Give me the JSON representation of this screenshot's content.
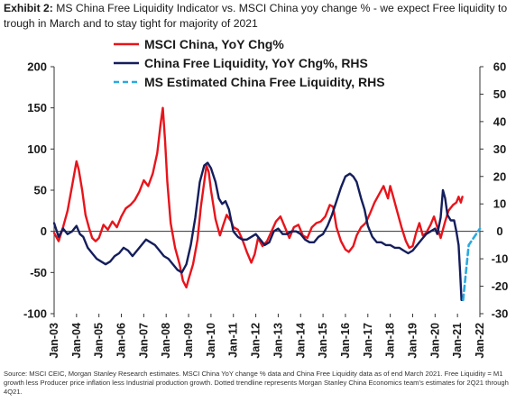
{
  "header": {
    "exhibit": "Exhibit 2:",
    "title": "MS China Free Liquidity Indicator vs. MSCI China yoy change % - we expect Free liquidity to trough in March and to stay tight for majority of 2021"
  },
  "footer": {
    "source": "Source: MSCI CEIC, Morgan Stanley Research estimates. MSCI China YoY change % data and China Free Liquidity data as of end March 2021. Free Liquidity = M1 growth less Producer price inflation less Industrial production growth. Dotted trendline represents Morgan Stanley China Economics team's estimates for 2Q21 through 4Q21."
  },
  "chart_data": {
    "type": "line",
    "left_axis": {
      "ylim": [
        -100,
        200
      ],
      "ticks": [
        -100,
        -50,
        0,
        50,
        100,
        150,
        200
      ]
    },
    "right_axis": {
      "ylim": [
        -30,
        60
      ],
      "ticks": [
        -30,
        -20,
        -10,
        0,
        10,
        20,
        30,
        40,
        50,
        60
      ]
    },
    "x_axis": {
      "range": [
        2003.0,
        2022.0
      ],
      "tick_labels": [
        "Jan-03",
        "Jan-04",
        "Jan-05",
        "Jan-06",
        "Jan-07",
        "Jan-08",
        "Jan-09",
        "Jan-10",
        "Jan-11",
        "Jan-12",
        "Jan-13",
        "Jan-14",
        "Jan-15",
        "Jan-16",
        "Jan-17",
        "Jan-18",
        "Jan-19",
        "Jan-20",
        "Jan-21",
        "Jan-22"
      ]
    },
    "grid": false,
    "legend_position": "top-left",
    "series": [
      {
        "name": "MSCI China, YoY Chg%",
        "axis": "left",
        "color": "#e8141b",
        "style": "solid",
        "points": [
          [
            2003.0,
            -2
          ],
          [
            2003.2,
            -12
          ],
          [
            2003.4,
            5
          ],
          [
            2003.6,
            25
          ],
          [
            2003.8,
            55
          ],
          [
            2004.0,
            85
          ],
          [
            2004.1,
            75
          ],
          [
            2004.25,
            50
          ],
          [
            2004.4,
            20
          ],
          [
            2004.55,
            5
          ],
          [
            2004.7,
            -8
          ],
          [
            2004.85,
            -12
          ],
          [
            2005.0,
            -8
          ],
          [
            2005.2,
            8
          ],
          [
            2005.4,
            2
          ],
          [
            2005.6,
            12
          ],
          [
            2005.8,
            5
          ],
          [
            2006.0,
            18
          ],
          [
            2006.2,
            28
          ],
          [
            2006.4,
            32
          ],
          [
            2006.6,
            38
          ],
          [
            2006.8,
            48
          ],
          [
            2007.0,
            62
          ],
          [
            2007.2,
            55
          ],
          [
            2007.4,
            70
          ],
          [
            2007.6,
            95
          ],
          [
            2007.75,
            130
          ],
          [
            2007.85,
            150
          ],
          [
            2007.95,
            110
          ],
          [
            2008.05,
            60
          ],
          [
            2008.2,
            10
          ],
          [
            2008.4,
            -20
          ],
          [
            2008.6,
            -40
          ],
          [
            2008.75,
            -60
          ],
          [
            2008.9,
            -68
          ],
          [
            2009.0,
            -58
          ],
          [
            2009.2,
            -40
          ],
          [
            2009.4,
            -10
          ],
          [
            2009.55,
            30
          ],
          [
            2009.7,
            60
          ],
          [
            2009.8,
            80
          ],
          [
            2009.9,
            72
          ],
          [
            2010.0,
            50
          ],
          [
            2010.2,
            15
          ],
          [
            2010.4,
            -5
          ],
          [
            2010.55,
            8
          ],
          [
            2010.7,
            20
          ],
          [
            2010.9,
            12
          ],
          [
            2011.0,
            5
          ],
          [
            2011.2,
            2
          ],
          [
            2011.4,
            -10
          ],
          [
            2011.6,
            -25
          ],
          [
            2011.8,
            -38
          ],
          [
            2011.95,
            -28
          ],
          [
            2012.1,
            -8
          ],
          [
            2012.3,
            -18
          ],
          [
            2012.5,
            -12
          ],
          [
            2012.7,
            0
          ],
          [
            2012.9,
            12
          ],
          [
            2013.1,
            18
          ],
          [
            2013.3,
            5
          ],
          [
            2013.5,
            -8
          ],
          [
            2013.7,
            5
          ],
          [
            2013.9,
            8
          ],
          [
            2014.1,
            -5
          ],
          [
            2014.3,
            -8
          ],
          [
            2014.5,
            5
          ],
          [
            2014.7,
            10
          ],
          [
            2014.9,
            12
          ],
          [
            2015.1,
            18
          ],
          [
            2015.3,
            32
          ],
          [
            2015.45,
            30
          ],
          [
            2015.6,
            5
          ],
          [
            2015.8,
            -12
          ],
          [
            2016.0,
            -22
          ],
          [
            2016.15,
            -25
          ],
          [
            2016.35,
            -18
          ],
          [
            2016.5,
            -5
          ],
          [
            2016.7,
            5
          ],
          [
            2016.9,
            10
          ],
          [
            2017.1,
            22
          ],
          [
            2017.3,
            35
          ],
          [
            2017.5,
            45
          ],
          [
            2017.7,
            55
          ],
          [
            2017.9,
            40
          ],
          [
            2018.0,
            55
          ],
          [
            2018.15,
            40
          ],
          [
            2018.3,
            25
          ],
          [
            2018.5,
            5
          ],
          [
            2018.7,
            -12
          ],
          [
            2018.85,
            -20
          ],
          [
            2019.0,
            -18
          ],
          [
            2019.15,
            -2
          ],
          [
            2019.3,
            10
          ],
          [
            2019.45,
            -5
          ],
          [
            2019.6,
            -2
          ],
          [
            2019.8,
            8
          ],
          [
            2019.95,
            18
          ],
          [
            2020.1,
            5
          ],
          [
            2020.25,
            -8
          ],
          [
            2020.45,
            12
          ],
          [
            2020.6,
            25
          ],
          [
            2020.8,
            32
          ],
          [
            2020.95,
            35
          ],
          [
            2021.05,
            42
          ],
          [
            2021.15,
            35
          ],
          [
            2021.22,
            42
          ]
        ]
      },
      {
        "name": "China Free Liquidity, YoY Chg%, RHS",
        "axis": "right",
        "color": "#141e5c",
        "style": "solid",
        "points": [
          [
            2003.0,
            3
          ],
          [
            2003.2,
            -2
          ],
          [
            2003.4,
            1
          ],
          [
            2003.6,
            -1
          ],
          [
            2003.8,
            0
          ],
          [
            2004.0,
            2
          ],
          [
            2004.15,
            -1
          ],
          [
            2004.3,
            -2
          ],
          [
            2004.5,
            -6
          ],
          [
            2004.7,
            -8
          ],
          [
            2004.9,
            -10
          ],
          [
            2005.1,
            -11
          ],
          [
            2005.3,
            -12
          ],
          [
            2005.5,
            -11
          ],
          [
            2005.7,
            -9
          ],
          [
            2005.9,
            -8
          ],
          [
            2006.1,
            -6
          ],
          [
            2006.3,
            -7
          ],
          [
            2006.5,
            -9
          ],
          [
            2006.7,
            -7
          ],
          [
            2006.9,
            -5
          ],
          [
            2007.1,
            -3
          ],
          [
            2007.3,
            -4
          ],
          [
            2007.5,
            -5
          ],
          [
            2007.7,
            -7
          ],
          [
            2007.9,
            -9
          ],
          [
            2008.1,
            -10
          ],
          [
            2008.3,
            -12
          ],
          [
            2008.5,
            -14
          ],
          [
            2008.7,
            -15
          ],
          [
            2008.9,
            -12
          ],
          [
            2009.1,
            -5
          ],
          [
            2009.3,
            5
          ],
          [
            2009.5,
            18
          ],
          [
            2009.7,
            24
          ],
          [
            2009.85,
            25
          ],
          [
            2010.0,
            23
          ],
          [
            2010.2,
            18
          ],
          [
            2010.35,
            12
          ],
          [
            2010.5,
            10
          ],
          [
            2010.65,
            11
          ],
          [
            2010.8,
            8
          ],
          [
            2011.0,
            0
          ],
          [
            2011.2,
            -2
          ],
          [
            2011.4,
            -3
          ],
          [
            2011.6,
            -3
          ],
          [
            2011.8,
            -2
          ],
          [
            2012.0,
            -1
          ],
          [
            2012.2,
            -3
          ],
          [
            2012.4,
            -5
          ],
          [
            2012.6,
            -4
          ],
          [
            2012.8,
            0
          ],
          [
            2013.0,
            1
          ],
          [
            2013.2,
            -1
          ],
          [
            2013.4,
            -1
          ],
          [
            2013.6,
            0
          ],
          [
            2013.8,
            0
          ],
          [
            2014.0,
            -1
          ],
          [
            2014.2,
            -3
          ],
          [
            2014.4,
            -4
          ],
          [
            2014.6,
            -4
          ],
          [
            2014.8,
            -2
          ],
          [
            2015.0,
            -1
          ],
          [
            2015.2,
            2
          ],
          [
            2015.4,
            6
          ],
          [
            2015.6,
            11
          ],
          [
            2015.8,
            16
          ],
          [
            2016.0,
            20
          ],
          [
            2016.2,
            21
          ],
          [
            2016.35,
            20
          ],
          [
            2016.5,
            18
          ],
          [
            2016.7,
            12
          ],
          [
            2016.85,
            8
          ],
          [
            2017.0,
            2
          ],
          [
            2017.2,
            -2
          ],
          [
            2017.4,
            -4
          ],
          [
            2017.6,
            -4
          ],
          [
            2017.8,
            -5
          ],
          [
            2018.0,
            -5
          ],
          [
            2018.2,
            -6
          ],
          [
            2018.4,
            -6
          ],
          [
            2018.6,
            -7
          ],
          [
            2018.8,
            -8
          ],
          [
            2019.0,
            -7
          ],
          [
            2019.2,
            -5
          ],
          [
            2019.4,
            -3
          ],
          [
            2019.6,
            -1
          ],
          [
            2019.8,
            0
          ],
          [
            2020.0,
            1
          ],
          [
            2020.1,
            -1
          ],
          [
            2020.25,
            5
          ],
          [
            2020.35,
            15
          ],
          [
            2020.45,
            12
          ],
          [
            2020.55,
            6
          ],
          [
            2020.7,
            4
          ],
          [
            2020.85,
            4
          ],
          [
            2020.95,
            0
          ],
          [
            2021.05,
            -5
          ],
          [
            2021.12,
            -15
          ],
          [
            2021.18,
            -25
          ],
          [
            2021.25,
            -25
          ]
        ]
      },
      {
        "name": "MS Estimated China Free Liquidity, RHS",
        "axis": "right",
        "color": "#29a9e1",
        "style": "dashed",
        "points": [
          [
            2021.25,
            -25
          ],
          [
            2021.5,
            -5
          ],
          [
            2021.75,
            -2
          ],
          [
            2022.0,
            1
          ]
        ]
      }
    ]
  }
}
